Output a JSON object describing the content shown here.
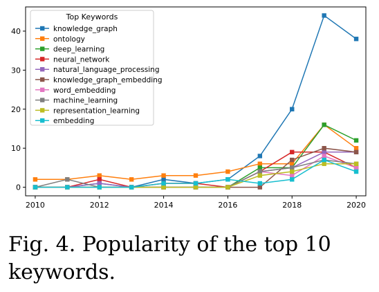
{
  "caption": "Fig. 4.  Popularity of the top 10 keywords.",
  "chart_data": {
    "type": "line",
    "title": "",
    "xlabel": "",
    "ylabel": "",
    "x": [
      2010,
      2011,
      2012,
      2013,
      2014,
      2015,
      2016,
      2017,
      2018,
      2019,
      2020
    ],
    "xticks": [
      2010,
      2012,
      2014,
      2016,
      2018,
      2020
    ],
    "yticks": [
      0,
      10,
      20,
      30,
      40
    ],
    "xlim": [
      2009.7,
      2020.3
    ],
    "ylim": [
      -2.2,
      46.2
    ],
    "grid": false,
    "marker": "square",
    "legend": {
      "title": "Top Keywords",
      "placement": "top-left"
    },
    "series": [
      {
        "name": "knowledge_graph",
        "color": "#1f77b4",
        "values": [
          0,
          0,
          1,
          0,
          2,
          1,
          2,
          8,
          20,
          44,
          38
        ]
      },
      {
        "name": "ontology",
        "color": "#ff7f0e",
        "values": [
          2,
          2,
          3,
          2,
          3,
          3,
          4,
          6,
          6,
          16,
          10
        ]
      },
      {
        "name": "deep_learning",
        "color": "#2ca02c",
        "values": [
          0,
          0,
          0,
          0,
          0,
          0,
          0,
          5,
          5,
          16,
          12
        ]
      },
      {
        "name": "neural_network",
        "color": "#d62728",
        "values": [
          0,
          0,
          2,
          0,
          1,
          1,
          0,
          4,
          9,
          9,
          5
        ]
      },
      {
        "name": "natural_language_processing",
        "color": "#9467bd",
        "values": [
          0,
          0,
          1,
          0,
          0,
          0,
          0,
          4,
          5,
          9,
          9
        ]
      },
      {
        "name": "knowledge_graph_embedding",
        "color": "#8c564b",
        "values": [
          0,
          0,
          0,
          0,
          0,
          0,
          0,
          0,
          7,
          10,
          9
        ]
      },
      {
        "name": "word_embedding",
        "color": "#e377c2",
        "values": [
          0,
          0,
          0,
          0,
          0,
          0,
          0,
          4,
          3,
          8,
          5
        ]
      },
      {
        "name": "machine_learning",
        "color": "#7f7f7f",
        "values": [
          0,
          2,
          0,
          0,
          0,
          0,
          0,
          4,
          5,
          7,
          6
        ]
      },
      {
        "name": "representation_learning",
        "color": "#bcbd22",
        "values": [
          0,
          0,
          0,
          0,
          0,
          0,
          0,
          3,
          4,
          6,
          6
        ]
      },
      {
        "name": "embedding",
        "color": "#17becf",
        "values": [
          0,
          0,
          0,
          0,
          1,
          1,
          2,
          1,
          2,
          7,
          4
        ]
      }
    ]
  }
}
